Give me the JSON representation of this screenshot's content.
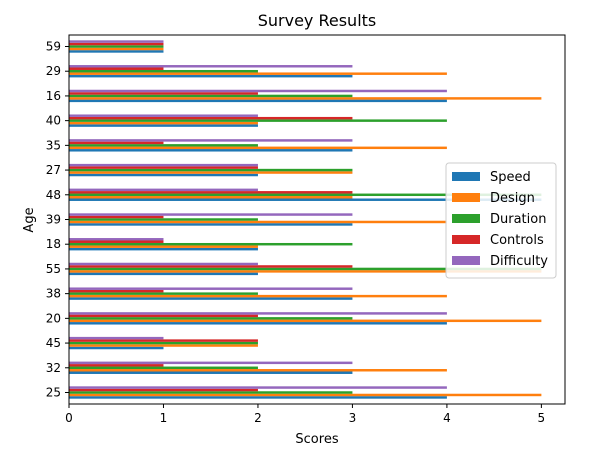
{
  "chart_data": {
    "type": "bar",
    "orientation": "horizontal",
    "title": "Survey Results",
    "xlabel": "Scores",
    "ylabel": "Age",
    "xlim": [
      0,
      5.25
    ],
    "xticks": [
      0,
      1,
      2,
      3,
      4,
      5
    ],
    "grid": false,
    "legend_position": "center-right",
    "categories": [
      "25",
      "32",
      "45",
      "20",
      "38",
      "55",
      "18",
      "39",
      "48",
      "27",
      "35",
      "40",
      "16",
      "29",
      "59"
    ],
    "series": [
      {
        "name": "Speed",
        "color": "#1f77b4",
        "values": [
          4,
          3,
          1,
          4,
          3,
          2,
          2,
          3,
          5,
          2,
          3,
          2,
          4,
          3,
          1
        ]
      },
      {
        "name": "Design",
        "color": "#ff7f0e",
        "values": [
          5,
          4,
          2,
          5,
          4,
          5,
          2,
          4,
          3,
          3,
          4,
          2,
          5,
          4,
          1
        ]
      },
      {
        "name": "Duration",
        "color": "#2ca02c",
        "values": [
          3,
          2,
          2,
          3,
          2,
          5,
          3,
          2,
          5,
          3,
          2,
          4,
          3,
          2,
          1
        ]
      },
      {
        "name": "Controls",
        "color": "#d62728",
        "values": [
          2,
          1,
          2,
          2,
          1,
          3,
          1,
          1,
          3,
          2,
          1,
          3,
          2,
          1,
          1
        ]
      },
      {
        "name": "Difficulty",
        "color": "#9467bd",
        "values": [
          4,
          3,
          1,
          4,
          3,
          2,
          1,
          3,
          2,
          2,
          3,
          2,
          4,
          3,
          1
        ]
      }
    ]
  }
}
